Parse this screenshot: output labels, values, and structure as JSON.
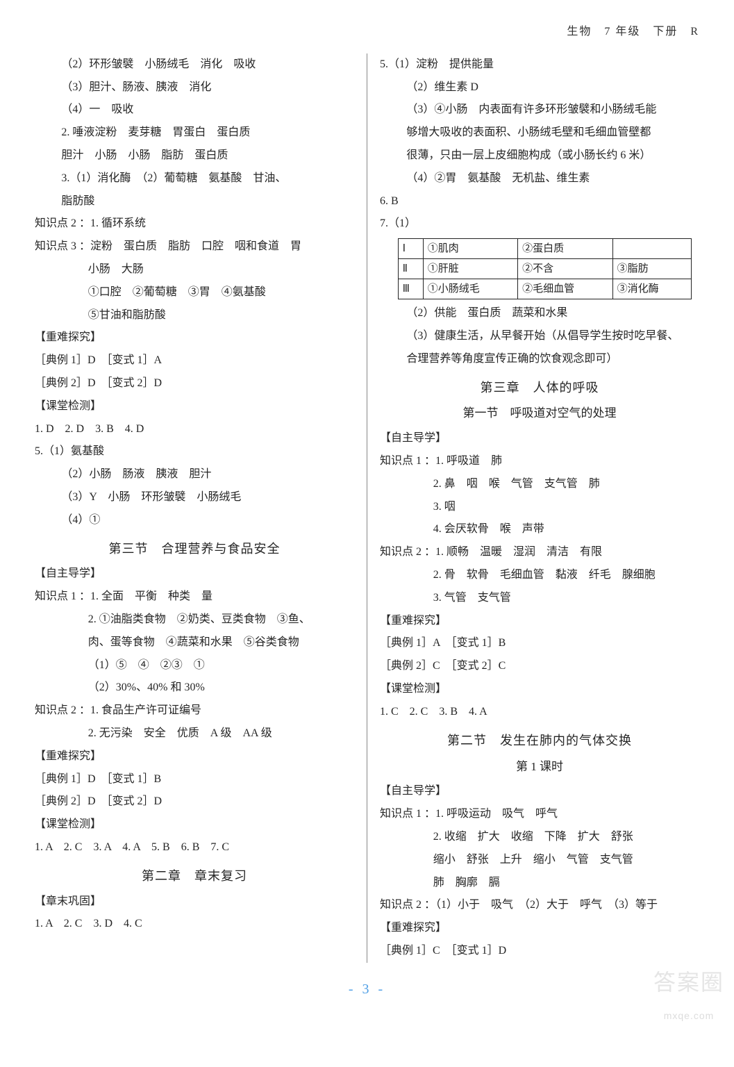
{
  "header": "生物　7 年级　下册　R",
  "page_number": "- 3 -",
  "watermark_top": "答案圈",
  "watermark_sub": "mxqe.com",
  "left": {
    "lines": [
      {
        "cls": "indent1",
        "t": "（2）环形皱襞　小肠绒毛　消化　吸收"
      },
      {
        "cls": "indent1",
        "t": "（3）胆汁、肠液、胰液　消化"
      },
      {
        "cls": "indent1",
        "t": "（4）一　吸收"
      },
      {
        "cls": "indent1",
        "t": "2. 唾液淀粉　麦芽糖　胃蛋白　蛋白质"
      },
      {
        "cls": "indent1",
        "t": "胆汁　小肠　小肠　脂肪　蛋白质"
      },
      {
        "cls": "indent1",
        "t": "3.（1）消化酶　（2）葡萄糖　氨基酸　甘油、"
      },
      {
        "cls": "indent1",
        "t": "脂肪酸"
      },
      {
        "cls": "",
        "t": "知识点 2 ：1. 循环系统"
      },
      {
        "cls": "",
        "t": "知识点 3 ：淀粉　蛋白质　脂肪　口腔　咽和食道　胃"
      },
      {
        "cls": "indent2",
        "t": "小肠　大肠"
      },
      {
        "cls": "indent2",
        "t": "①口腔　②葡萄糖　③胃　④氨基酸"
      },
      {
        "cls": "indent2",
        "t": "⑤甘油和脂肪酸"
      },
      {
        "cls": "",
        "t": "【重难探究】"
      },
      {
        "cls": "",
        "t": "［典例 1］D　［变式 1］A"
      },
      {
        "cls": "",
        "t": "［典例 2］D　［变式 2］D"
      },
      {
        "cls": "",
        "t": "【课堂检测】"
      },
      {
        "cls": "",
        "t": "1. D　2. D　3. B　4. D"
      },
      {
        "cls": "",
        "t": "5.（1）氨基酸"
      },
      {
        "cls": "indent1",
        "t": "（2）小肠　肠液　胰液　胆汁"
      },
      {
        "cls": "indent1",
        "t": "（3）Y　小肠　环形皱襞　小肠绒毛"
      },
      {
        "cls": "indent1",
        "t": "（4）①"
      }
    ],
    "sec3_title": "第三节　合理营养与食品安全",
    "sec3_lines": [
      {
        "cls": "",
        "t": "【自主导学】"
      },
      {
        "cls": "",
        "t": "知识点 1 ：1. 全面　平衡　种类　量"
      },
      {
        "cls": "indent2",
        "t": "2. ①油脂类食物　②奶类、豆类食物　③鱼、"
      },
      {
        "cls": "indent2",
        "t": "肉、蛋等食物　④蔬菜和水果　⑤谷类食物"
      },
      {
        "cls": "indent2",
        "t": "（1）⑤　④　②③　①"
      },
      {
        "cls": "indent2",
        "t": "（2）30%、40% 和 30%"
      },
      {
        "cls": "",
        "t": "知识点 2 ：1. 食品生产许可证编号"
      },
      {
        "cls": "indent2",
        "t": "2. 无污染　安全　优质　A 级　AA 级"
      },
      {
        "cls": "",
        "t": "【重难探究】"
      },
      {
        "cls": "",
        "t": "［典例 1］D　［变式 1］B"
      },
      {
        "cls": "",
        "t": "［典例 2］D　［变式 2］D"
      },
      {
        "cls": "",
        "t": "【课堂检测】"
      },
      {
        "cls": "",
        "t": "1. A　2. C　3. A　4. A　5. B　6. B　7. C"
      }
    ],
    "ch2_title": "第二章　章末复习",
    "ch2_lines": [
      {
        "cls": "",
        "t": "【章末巩固】"
      },
      {
        "cls": "",
        "t": "1. A　2. C　3. D　4. C"
      }
    ]
  },
  "right": {
    "pre_lines": [
      {
        "cls": "",
        "t": "5.（1）淀粉　提供能量"
      },
      {
        "cls": "indent1",
        "t": "（2）维生素 D"
      },
      {
        "cls": "indent1",
        "t": "（3）④小肠　内表面有许多环形皱襞和小肠绒毛能"
      },
      {
        "cls": "indent1",
        "t": "够增大吸收的表面积、小肠绒毛壁和毛细血管壁都"
      },
      {
        "cls": "indent1",
        "t": "很薄，只由一层上皮细胞构成（或小肠长约 6 米）"
      },
      {
        "cls": "indent1",
        "t": "（4）②胃　氨基酸　无机盐、维生素"
      },
      {
        "cls": "",
        "t": "6. B"
      },
      {
        "cls": "",
        "t": "7.（1）"
      }
    ],
    "table": {
      "rows": [
        [
          "Ⅰ",
          "①肌肉",
          "②蛋白质",
          ""
        ],
        [
          "Ⅱ",
          "①肝脏",
          "②不含",
          "③脂肪"
        ],
        [
          "Ⅲ",
          "①小肠绒毛",
          "②毛细血管",
          "③消化酶"
        ]
      ]
    },
    "post_table_lines": [
      {
        "cls": "indent1",
        "t": "（2）供能　蛋白质　蔬菜和水果"
      },
      {
        "cls": "indent1",
        "t": "（3）健康生活，从早餐开始（从倡导学生按时吃早餐、"
      },
      {
        "cls": "indent1",
        "t": "合理营养等角度宣传正确的饮食观念即可）"
      }
    ],
    "ch3_title": "第三章　人体的呼吸",
    "ch3_sec1_title": "第一节　呼吸道对空气的处理",
    "ch3_sec1_lines": [
      {
        "cls": "",
        "t": "【自主导学】"
      },
      {
        "cls": "",
        "t": "知识点 1 ：1. 呼吸道　肺"
      },
      {
        "cls": "indent2",
        "t": "2. 鼻　咽　喉　气管　支气管　肺"
      },
      {
        "cls": "indent2",
        "t": "3. 咽"
      },
      {
        "cls": "indent2",
        "t": "4. 会厌软骨　喉　声带"
      },
      {
        "cls": "",
        "t": "知识点 2 ：1. 顺畅　温暖　湿润　清洁　有限"
      },
      {
        "cls": "indent2",
        "t": "2. 骨　软骨　毛细血管　黏液　纤毛　腺细胞"
      },
      {
        "cls": "indent2",
        "t": "3. 气管　支气管"
      },
      {
        "cls": "",
        "t": "【重难探究】"
      },
      {
        "cls": "",
        "t": "［典例 1］A　［变式 1］B"
      },
      {
        "cls": "",
        "t": "［典例 2］C　［变式 2］C"
      },
      {
        "cls": "",
        "t": "【课堂检测】"
      },
      {
        "cls": "",
        "t": "1. C　2. C　3. B　4. A"
      }
    ],
    "ch3_sec2_title": "第二节　发生在肺内的气体交换",
    "ch3_sec2_sub": "第 1 课时",
    "ch3_sec2_lines": [
      {
        "cls": "",
        "t": "【自主导学】"
      },
      {
        "cls": "",
        "t": "知识点 1 ：1. 呼吸运动　吸气　呼气"
      },
      {
        "cls": "indent2",
        "t": "2. 收缩　扩大　收缩　下降　扩大　舒张"
      },
      {
        "cls": "indent2",
        "t": "缩小　舒张　上升　缩小　气管　支气管"
      },
      {
        "cls": "indent2",
        "t": "肺　胸廓　膈"
      },
      {
        "cls": "",
        "t": "知识点 2 ：（1）小于　吸气　（2）大于　呼气　（3）等于"
      },
      {
        "cls": "",
        "t": "【重难探究】"
      },
      {
        "cls": "",
        "t": "［典例 1］C　［变式 1］D"
      }
    ]
  }
}
